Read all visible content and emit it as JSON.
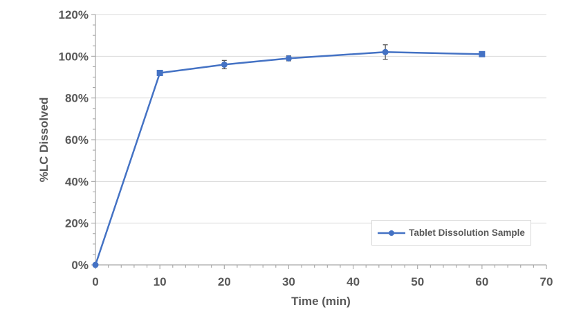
{
  "chart_data": {
    "type": "line",
    "title": "",
    "xlabel": "Time (min)",
    "ylabel": "%LC Dissolved",
    "xlim": [
      0,
      70
    ],
    "ylim": [
      0,
      120
    ],
    "y_unit": "%",
    "grid": "horizontal-major-only",
    "legend_position": "inside-bottom-right",
    "x_major_ticks": [
      0,
      10,
      20,
      30,
      40,
      50,
      60,
      70
    ],
    "x_tick_labels": [
      "0",
      "10",
      "20",
      "30",
      "40",
      "50",
      "60",
      "70"
    ],
    "x_minor_step": 2,
    "y_major_ticks": [
      0,
      20,
      40,
      60,
      80,
      100,
      120
    ],
    "y_tick_labels": [
      "0%",
      "20%",
      "40%",
      "60%",
      "80%",
      "100%",
      "120%"
    ],
    "y_minor_step": 5,
    "series": [
      {
        "name": "Tablet Dissolution Sample",
        "x": [
          0,
          10,
          20,
          30,
          45,
          60
        ],
        "y": [
          0,
          92,
          96,
          99,
          102,
          101
        ],
        "y_err": [
          0,
          0,
          2,
          1.2,
          3.5,
          0.8
        ],
        "markers": [
          "circle",
          "square",
          "circle",
          "circle",
          "circle",
          "square"
        ],
        "color": "#4472C4"
      }
    ]
  },
  "axes": {
    "x_title": "Time (min)",
    "y_title": "%LC Dissolved"
  },
  "legend": {
    "label": "Tablet Dissolution Sample"
  },
  "colors": {
    "series": "#4472C4",
    "grid": "#D9D9D9",
    "axis": "#A6A6A6",
    "text": "#595959",
    "error_bar": "#595959",
    "background": "#FFFFFF",
    "legend_border": "#D9D9D9"
  }
}
